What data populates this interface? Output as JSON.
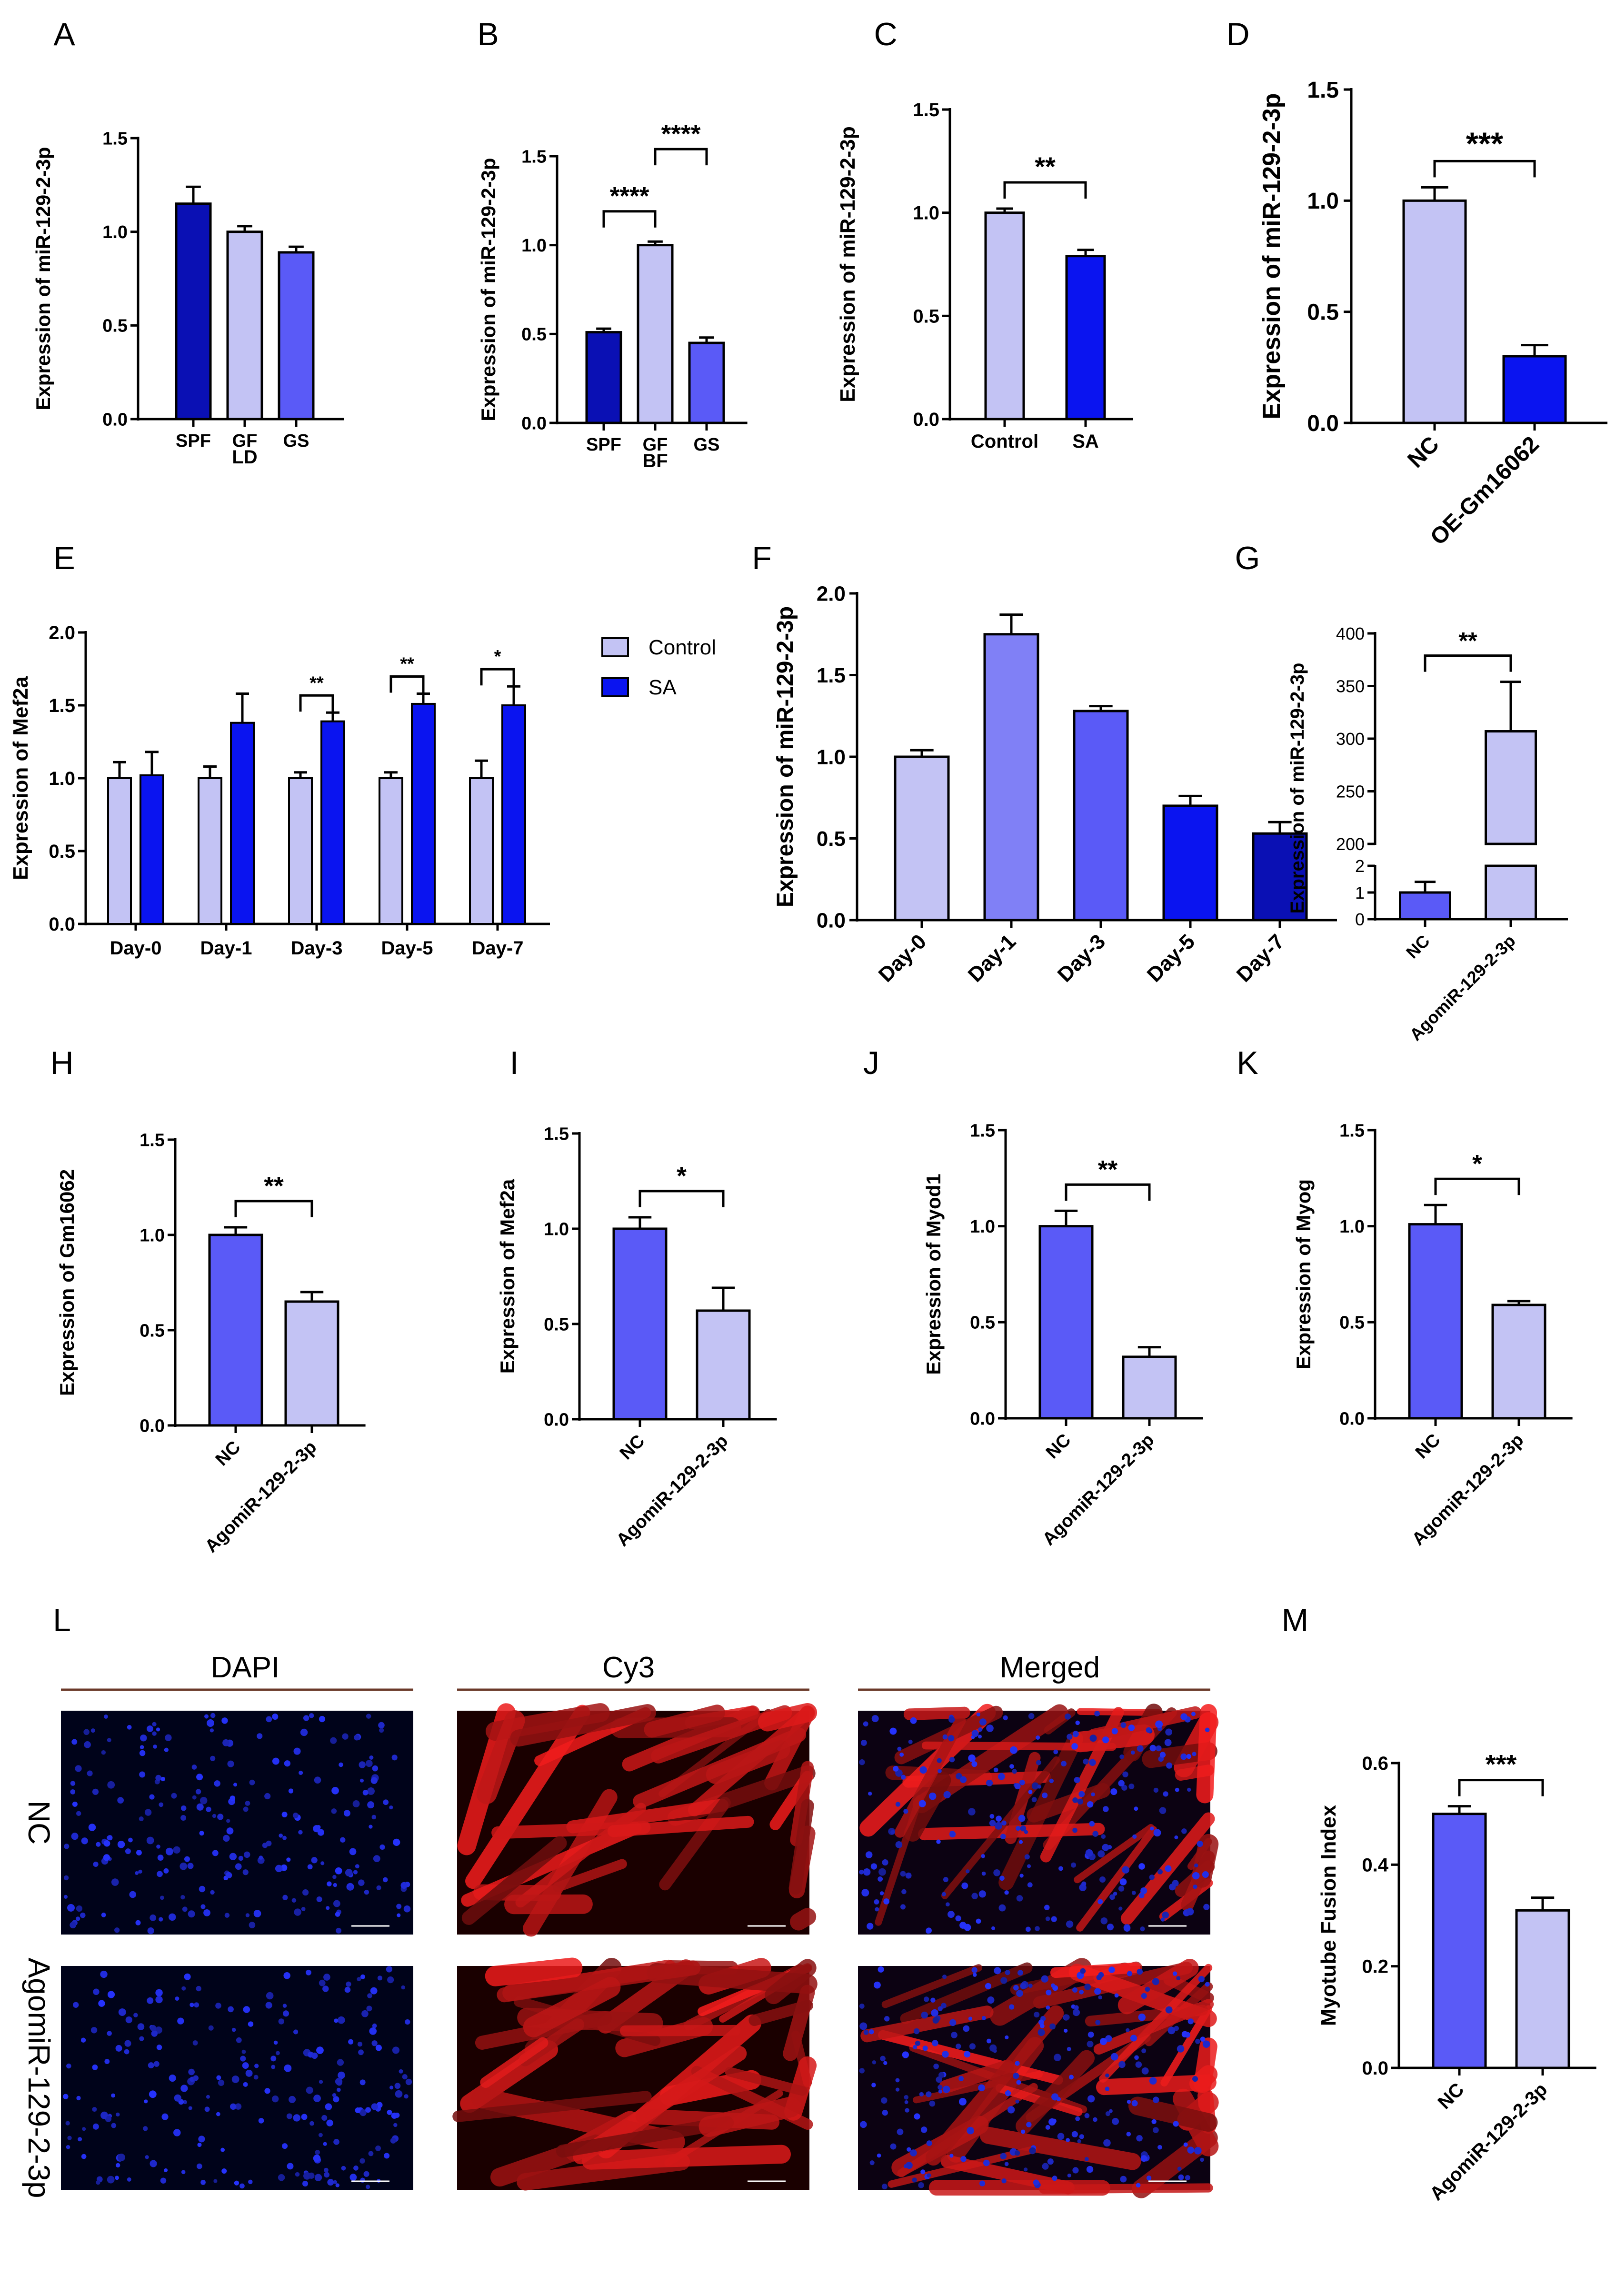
{
  "panel_letters": [
    "A",
    "B",
    "C",
    "D",
    "E",
    "F",
    "G",
    "H",
    "I",
    "J",
    "K",
    "L",
    "M"
  ],
  "chart_data": [
    {
      "panel": "A",
      "type": "bar",
      "categories": [
        "SPF",
        "GF",
        "GS"
      ],
      "values": [
        1.15,
        1.0,
        0.89
      ],
      "errors": [
        0.09,
        0.03,
        0.03
      ],
      "colors": [
        "#0a10b4",
        "#c3c3f4",
        "#5a5af7"
      ],
      "xlabel": "LD",
      "ylabel": "Expression of miR-129-2-3p",
      "ylim": [
        0,
        1.5
      ],
      "yticks": [
        "0.0",
        "0.5",
        "1.0",
        "1.5"
      ],
      "significance": []
    },
    {
      "panel": "B",
      "type": "bar",
      "categories": [
        "SPF",
        "GF",
        "GS"
      ],
      "values": [
        0.51,
        1.0,
        0.45
      ],
      "errors": [
        0.02,
        0.02,
        0.03
      ],
      "colors": [
        "#0a10b4",
        "#c3c3f4",
        "#5a5af7"
      ],
      "xlabel": "BF",
      "ylabel": "Expression of miR-129-2-3p",
      "ylim": [
        0,
        1.5
      ],
      "yticks": [
        "0.0",
        "0.5",
        "1.0",
        "1.5"
      ],
      "significance": [
        {
          "from": 0,
          "to": 1,
          "label": "****"
        },
        {
          "from": 1,
          "to": 2,
          "label": "****"
        }
      ]
    },
    {
      "panel": "C",
      "type": "bar",
      "categories": [
        "Control",
        "SA"
      ],
      "values": [
        1.0,
        0.79
      ],
      "errors": [
        0.02,
        0.03
      ],
      "colors": [
        "#c3c3f4",
        "#0a14f0"
      ],
      "xlabel": "",
      "ylabel": "Expression of miR-129-2-3p",
      "ylim": [
        0,
        1.5
      ],
      "yticks": [
        "0.0",
        "0.5",
        "1.0",
        "1.5"
      ],
      "significance": [
        {
          "from": 0,
          "to": 1,
          "label": "**"
        }
      ]
    },
    {
      "panel": "D",
      "type": "bar",
      "categories": [
        "NC",
        "OE-Gm16062"
      ],
      "values": [
        1.0,
        0.3
      ],
      "errors": [
        0.06,
        0.05
      ],
      "colors": [
        "#c3c3f4",
        "#0a14f0"
      ],
      "xlabel": "",
      "ylabel": "Expression of miR-129-2-3p",
      "ylim": [
        0,
        1.5
      ],
      "yticks": [
        "0.0",
        "0.5",
        "1.0",
        "1.5"
      ],
      "significance": [
        {
          "from": 0,
          "to": 1,
          "label": "***"
        }
      ]
    },
    {
      "panel": "E",
      "type": "bar",
      "categories": [
        "Day-0",
        "Day-1",
        "Day-3",
        "Day-5",
        "Day-7"
      ],
      "series": [
        {
          "name": "Control",
          "color": "#c3c3f4",
          "values": [
            1.0,
            1.0,
            1.0,
            1.0,
            1.0
          ],
          "errors": [
            0.11,
            0.08,
            0.04,
            0.04,
            0.12
          ]
        },
        {
          "name": "SA",
          "color": "#0a14f0",
          "values": [
            1.02,
            1.38,
            1.39,
            1.51,
            1.5
          ],
          "errors": [
            0.16,
            0.2,
            0.06,
            0.07,
            0.13
          ]
        }
      ],
      "xlabel": "",
      "ylabel": "Expression of Mef2a",
      "ylim": [
        0,
        2.0
      ],
      "yticks": [
        "0.0",
        "0.5",
        "1.0",
        "1.5",
        "2.0"
      ],
      "significance": [
        {
          "category": 2,
          "label": "**"
        },
        {
          "category": 3,
          "label": "**"
        },
        {
          "category": 4,
          "label": "*"
        }
      ]
    },
    {
      "panel": "F",
      "type": "bar",
      "categories": [
        "Day-0",
        "Day-1",
        "Day-3",
        "Day-5",
        "Day-7"
      ],
      "values": [
        1.0,
        1.75,
        1.28,
        0.7,
        0.53
      ],
      "errors": [
        0.04,
        0.12,
        0.03,
        0.06,
        0.07
      ],
      "colors": [
        "#c3c3f4",
        "#8080f6",
        "#5a5af7",
        "#0a14f0",
        "#0a10b4"
      ],
      "xlabel": "",
      "ylabel": "Expression of miR-129-2-3p",
      "ylim": [
        0,
        2.0
      ],
      "yticks": [
        "0.0",
        "0.5",
        "1.0",
        "1.5",
        "2.0"
      ],
      "significance": []
    },
    {
      "panel": "G",
      "type": "bar",
      "categories": [
        "NC",
        "AgomiR-129-2-3p"
      ],
      "values": [
        1.0,
        307
      ],
      "errors": [
        0.4,
        47
      ],
      "colors": [
        "#5a5af7",
        "#c3c3f4"
      ],
      "xlabel": "",
      "ylabel": "Expression of miR-129-2-3p",
      "broken_axis": {
        "lower": [
          0,
          2
        ],
        "upper": [
          200,
          400
        ]
      },
      "yticks_lower": [
        "0",
        "1",
        "2"
      ],
      "yticks_upper": [
        "200",
        "250",
        "300",
        "350",
        "400"
      ],
      "significance": [
        {
          "from": 0,
          "to": 1,
          "label": "**"
        }
      ]
    },
    {
      "panel": "H",
      "type": "bar",
      "categories": [
        "NC",
        "AgomiR-129-2-3p"
      ],
      "values": [
        1.0,
        0.65
      ],
      "errors": [
        0.04,
        0.05
      ],
      "colors": [
        "#5a5af7",
        "#c3c3f4"
      ],
      "xlabel": "",
      "ylabel": "Expression of Gm16062",
      "ylim": [
        0,
        1.5
      ],
      "yticks": [
        "0.0",
        "0.5",
        "1.0",
        "1.5"
      ],
      "significance": [
        {
          "from": 0,
          "to": 1,
          "label": "**"
        }
      ]
    },
    {
      "panel": "I",
      "type": "bar",
      "categories": [
        "NC",
        "AgomiR-129-2-3p"
      ],
      "values": [
        1.0,
        0.57
      ],
      "errors": [
        0.06,
        0.12
      ],
      "colors": [
        "#5a5af7",
        "#c3c3f4"
      ],
      "xlabel": "",
      "ylabel": "Expression of Mef2a",
      "ylim": [
        0,
        1.5
      ],
      "yticks": [
        "0.0",
        "0.5",
        "1.0",
        "1.5"
      ],
      "significance": [
        {
          "from": 0,
          "to": 1,
          "label": "*"
        }
      ]
    },
    {
      "panel": "J",
      "type": "bar",
      "categories": [
        "NC",
        "AgomiR-129-2-3p"
      ],
      "values": [
        1.0,
        0.32
      ],
      "errors": [
        0.08,
        0.05
      ],
      "colors": [
        "#5a5af7",
        "#c3c3f4"
      ],
      "xlabel": "",
      "ylabel": "Expression of Myod1",
      "ylim": [
        0,
        1.5
      ],
      "yticks": [
        "0.0",
        "0.5",
        "1.0",
        "1.5"
      ],
      "significance": [
        {
          "from": 0,
          "to": 1,
          "label": "**"
        }
      ]
    },
    {
      "panel": "K",
      "type": "bar",
      "categories": [
        "NC",
        "AgomiR-129-2-3p"
      ],
      "values": [
        1.01,
        0.59
      ],
      "errors": [
        0.1,
        0.02
      ],
      "colors": [
        "#5a5af7",
        "#c3c3f4"
      ],
      "xlabel": "",
      "ylabel": "Expression of Myog",
      "ylim": [
        0,
        1.5
      ],
      "yticks": [
        "0.0",
        "0.5",
        "1.0",
        "1.5"
      ],
      "significance": [
        {
          "from": 0,
          "to": 1,
          "label": "*"
        }
      ]
    },
    {
      "panel": "M",
      "type": "bar",
      "categories": [
        "NC",
        "AgomiR-129-2-3p"
      ],
      "values": [
        0.5,
        0.31
      ],
      "errors": [
        0.015,
        0.025
      ],
      "colors": [
        "#5a5af7",
        "#c3c3f4"
      ],
      "xlabel": "",
      "ylabel": "Myotube Fusion Index",
      "ylim": [
        0,
        0.6
      ],
      "yticks": [
        "0.0",
        "0.2",
        "0.4",
        "0.6"
      ],
      "significance": [
        {
          "from": 0,
          "to": 1,
          "label": "***"
        }
      ]
    }
  ],
  "microscopy": {
    "columns": [
      "DAPI",
      "Cy3",
      "Merged"
    ],
    "rows": [
      "NC",
      "AgomiR-129-2-3p"
    ]
  }
}
